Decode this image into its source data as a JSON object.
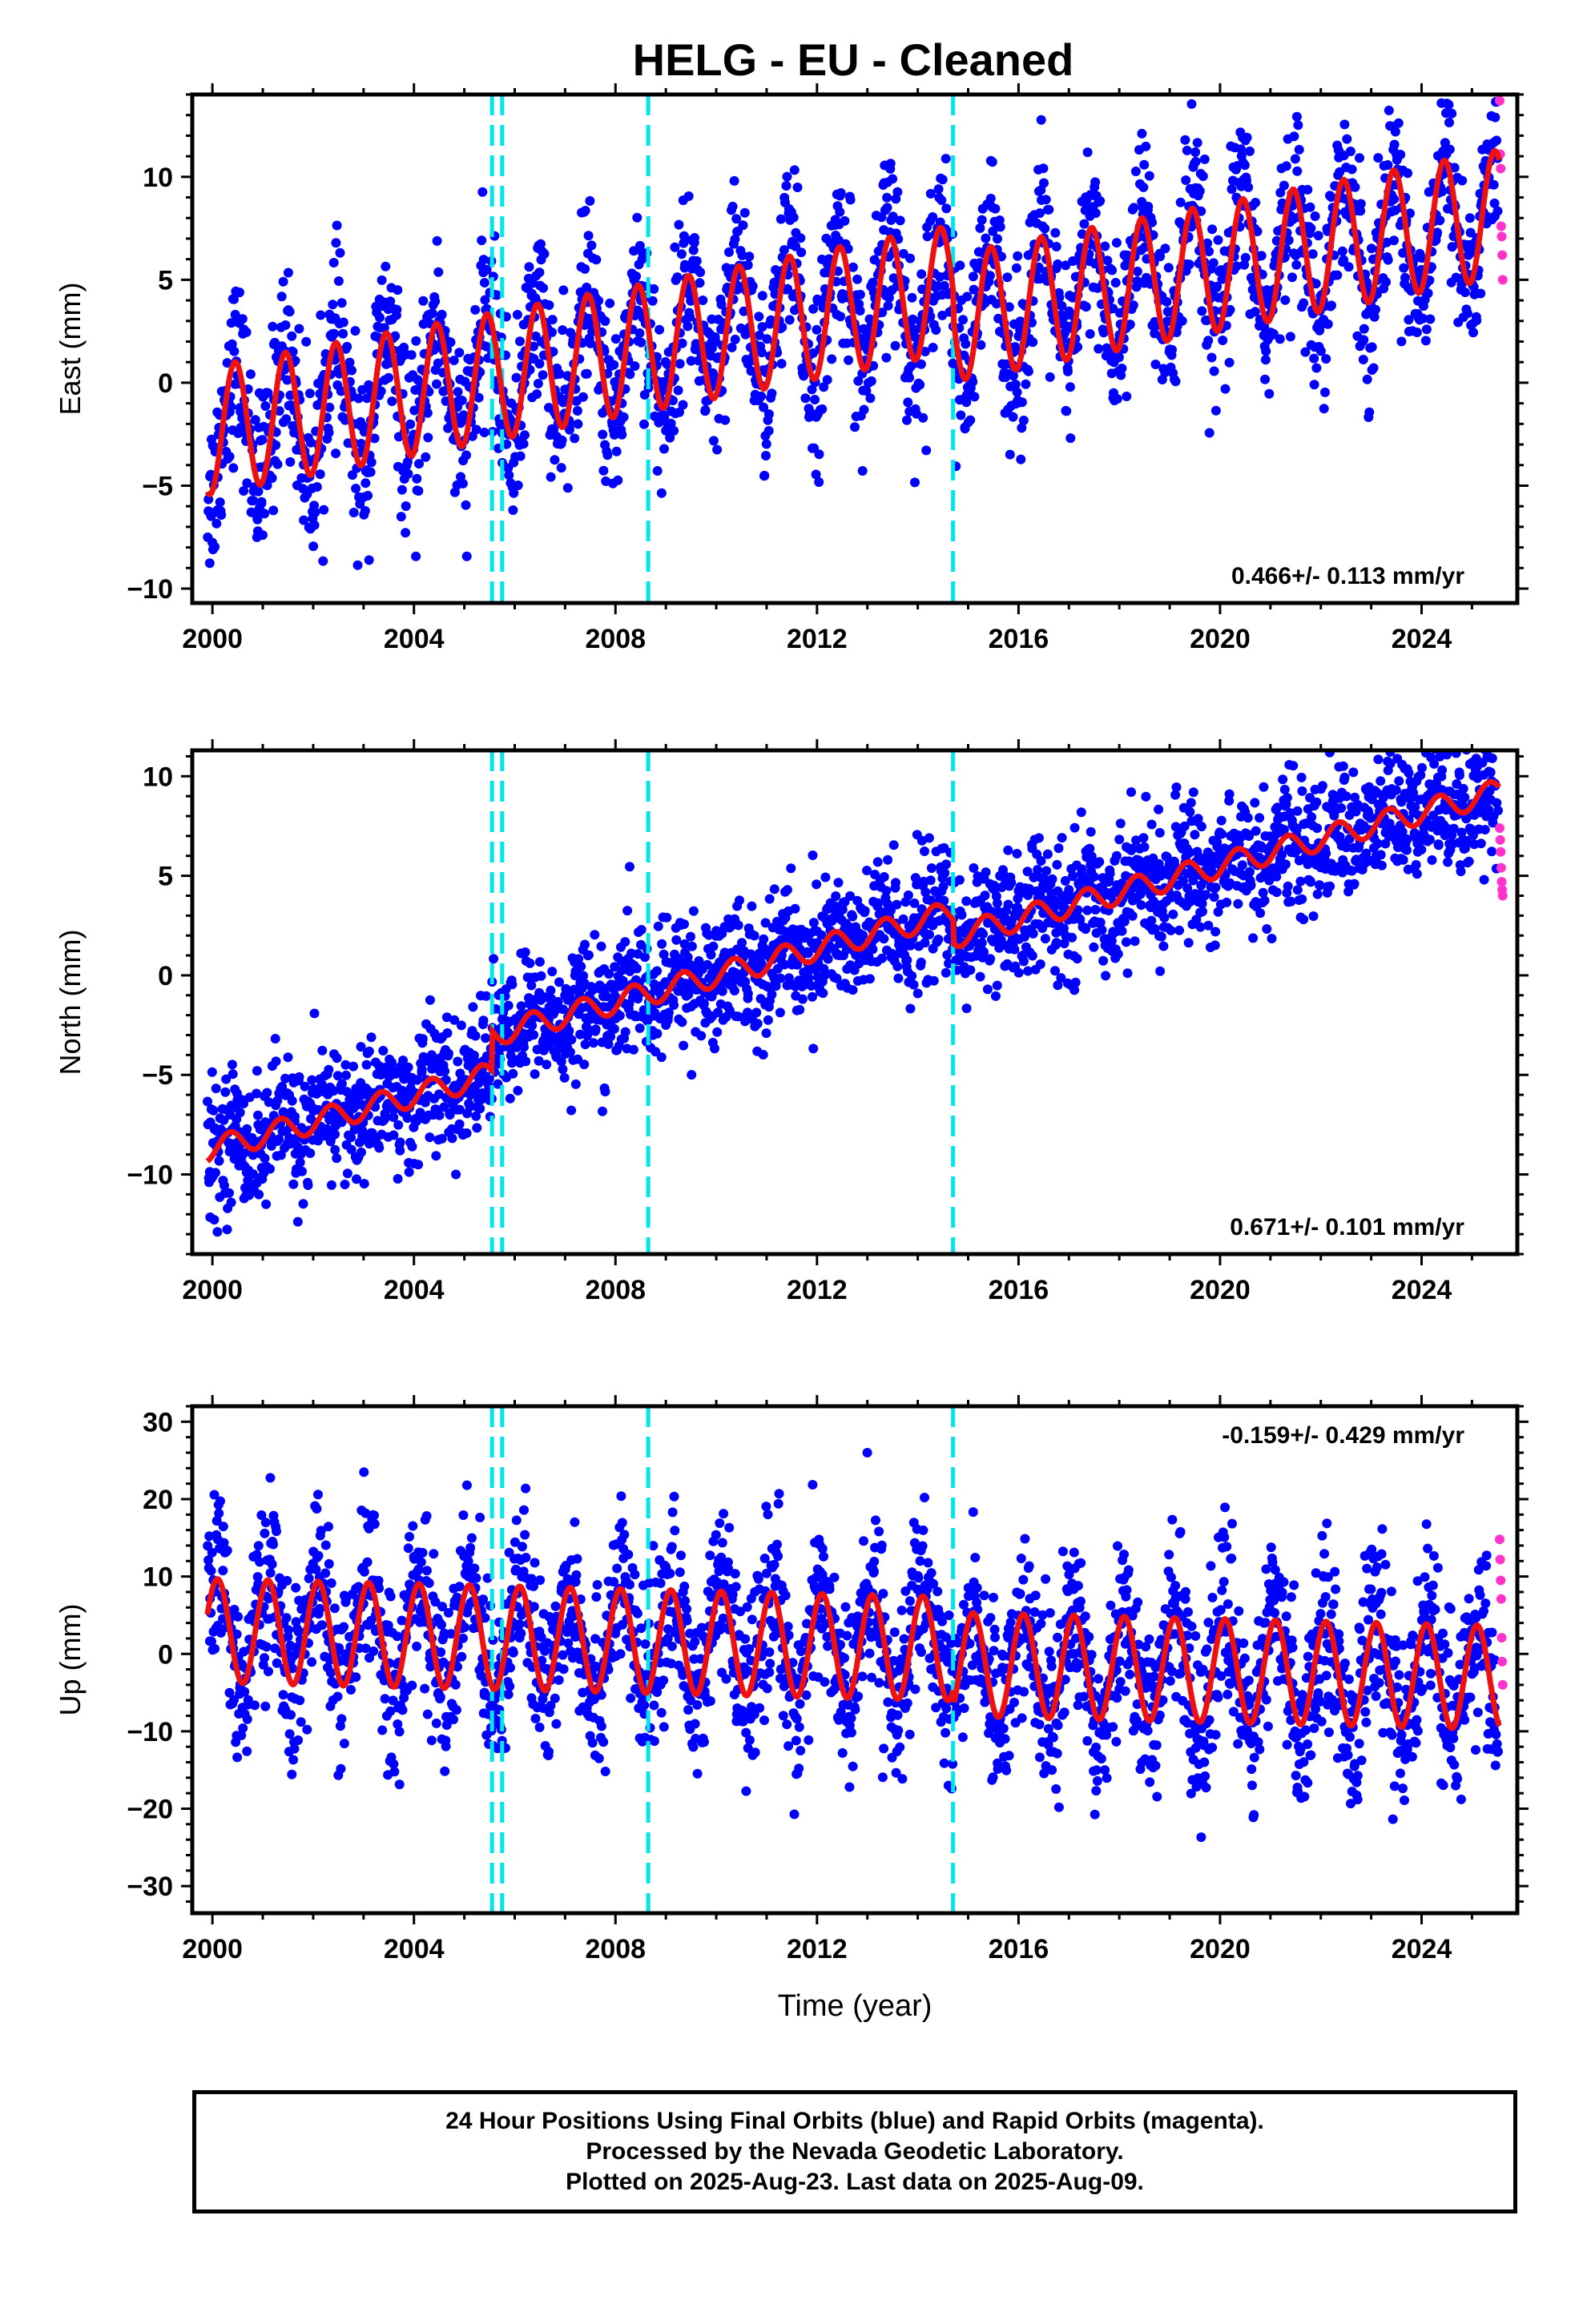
{
  "title": "HELG  - EU - Cleaned",
  "footer": {
    "line1": "24 Hour Positions Using Final Orbits (blue) and Rapid Orbits (magenta).",
    "line2": "Processed by the Nevada Geodetic Laboratory.",
    "line3": "Plotted on 2025-Aug-23. Last data on 2025-Aug-09."
  },
  "colors": {
    "final_orbits": "#0000ff",
    "rapid_orbits": "#ff33cc",
    "model_fit": "#ee1111",
    "equipment_change": "#00e5ee"
  },
  "chart_data": [
    {
      "type": "scatter",
      "ylabel": "East (mm)",
      "xlabel": "",
      "xlim": [
        1999.6,
        2025.9
      ],
      "ylim": [
        -10.7,
        14.0
      ],
      "xticks": [
        2000,
        2004,
        2008,
        2012,
        2016,
        2020,
        2024
      ],
      "yticks": [
        -10,
        -5,
        0,
        5,
        10
      ],
      "rate_label": "0.466+/- 0.113 mm/yr",
      "rate_position": "bottom-right",
      "offset_lines": [
        2005.55,
        2005.75,
        2008.65,
        2014.7
      ],
      "model": {
        "offset": -2.3,
        "rate": 0.466,
        "amplitude": 3.1,
        "phase_year": 2000.2,
        "steps": [
          {
            "year": 2005.55,
            "value": 0.0
          },
          {
            "year": 2014.7,
            "value": -1.4
          }
        ]
      },
      "scatter_spread": 2.1,
      "rapid_points": [
        [
          2025.55,
          13.7
        ],
        [
          2025.56,
          11.1
        ],
        [
          2025.57,
          10.4
        ],
        [
          2025.58,
          7.6
        ],
        [
          2025.59,
          7.1
        ],
        [
          2025.6,
          6.2
        ],
        [
          2025.61,
          5.0
        ]
      ]
    },
    {
      "type": "scatter",
      "ylabel": "North (mm)",
      "xlabel": "",
      "xlim": [
        1999.6,
        2025.9
      ],
      "ylim": [
        -14.0,
        11.3
      ],
      "xticks": [
        2000,
        2004,
        2008,
        2012,
        2016,
        2020,
        2024
      ],
      "yticks": [
        -10,
        -5,
        0,
        5,
        10
      ],
      "rate_label": "0.671+/- 0.101 mm/yr",
      "rate_position": "bottom-right",
      "offset_lines": [
        2005.55,
        2005.75,
        2008.65,
        2014.7
      ],
      "model": {
        "offset": -8.7,
        "rate": 0.671,
        "amplitude": 0.6,
        "phase_year": 2000.1,
        "steps": [
          {
            "year": 2005.55,
            "value": 2.0
          },
          {
            "year": 2014.7,
            "value": -1.2
          }
        ]
      },
      "scatter_spread": 1.6,
      "rapid_points": [
        [
          2025.55,
          7.4
        ],
        [
          2025.56,
          6.8
        ],
        [
          2025.57,
          6.2
        ],
        [
          2025.58,
          5.4
        ],
        [
          2025.59,
          4.7
        ],
        [
          2025.6,
          4.3
        ],
        [
          2025.61,
          4.0
        ]
      ]
    },
    {
      "type": "scatter",
      "ylabel": "Up (mm)",
      "xlabel": "Time (year)",
      "xlim": [
        1999.6,
        2025.9
      ],
      "ylim": [
        -33.5,
        32.0
      ],
      "xticks": [
        2000,
        2004,
        2008,
        2012,
        2016,
        2020,
        2024
      ],
      "yticks": [
        -30,
        -20,
        -10,
        0,
        10,
        20,
        30
      ],
      "rate_label": "-0.159+/- 0.429 mm/yr",
      "rate_position": "top-right",
      "offset_lines": [
        2005.55,
        2005.75,
        2008.65,
        2014.7
      ],
      "model": {
        "offset": 3.0,
        "rate": -0.159,
        "amplitude": 6.7,
        "phase_year": 1999.85,
        "steps": [
          {
            "year": 2014.7,
            "value": -2.0
          }
        ]
      },
      "scatter_spread": 5.5,
      "rapid_points": [
        [
          2025.55,
          14.8
        ],
        [
          2025.56,
          12.2
        ],
        [
          2025.57,
          9.5
        ],
        [
          2025.58,
          7.1
        ],
        [
          2025.59,
          2.1
        ],
        [
          2025.6,
          -1.0
        ],
        [
          2025.61,
          -4.0
        ]
      ]
    }
  ]
}
